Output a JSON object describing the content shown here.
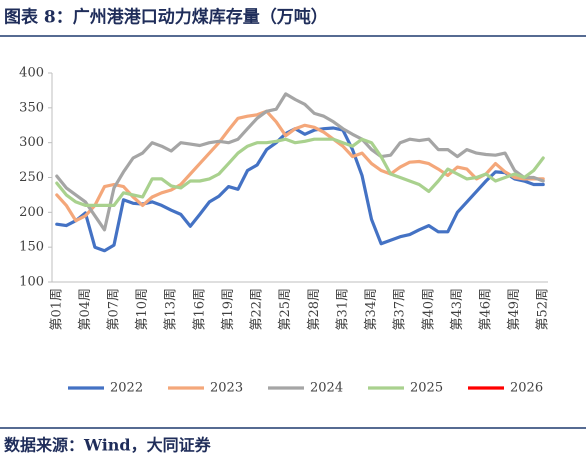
{
  "chart_data": {
    "type": "line",
    "title": "图表 8：广州港港口动力煤库存量（万吨）",
    "source": "数据来源：Wind，大同证券",
    "categories": [
      "第01周",
      null,
      null,
      "第04周",
      null,
      null,
      "第07周",
      null,
      null,
      "第10周",
      null,
      null,
      "第13周",
      null,
      null,
      "第16周",
      null,
      null,
      "第19周",
      null,
      null,
      "第22周",
      null,
      null,
      "第25周",
      null,
      null,
      "第28周",
      null,
      null,
      "第31周",
      null,
      null,
      "第34周",
      null,
      null,
      "第37周",
      null,
      null,
      "第40周",
      null,
      null,
      "第43周",
      null,
      null,
      "第46周",
      null,
      null,
      "第49周",
      null,
      null,
      "第52周"
    ],
    "series": [
      {
        "name": "2022",
        "color": "#4472c4",
        "values": [
          183,
          181,
          188,
          199,
          150,
          145,
          153,
          218,
          213,
          212,
          215,
          210,
          203,
          197,
          180,
          197,
          215,
          223,
          237,
          233,
          260,
          268,
          290,
          300,
          313,
          320,
          312,
          318,
          320,
          321,
          318,
          290,
          253,
          190,
          155,
          160,
          165,
          168,
          175,
          181,
          172,
          172,
          200,
          215,
          230,
          245,
          258,
          257,
          248,
          245,
          240,
          240
        ]
      },
      {
        "name": "2023",
        "color": "#f4a77a",
        "values": [
          225,
          210,
          188,
          195,
          210,
          237,
          240,
          237,
          222,
          210,
          222,
          228,
          232,
          240,
          255,
          270,
          285,
          300,
          318,
          335,
          338,
          340,
          345,
          330,
          310,
          320,
          325,
          322,
          315,
          305,
          295,
          280,
          285,
          270,
          260,
          255,
          265,
          272,
          273,
          270,
          262,
          253,
          265,
          262,
          248,
          255,
          270,
          258,
          250,
          248,
          248,
          248
        ]
      },
      {
        "name": "2024",
        "color": "#a5a5a5",
        "values": [
          252,
          235,
          225,
          215,
          195,
          175,
          235,
          258,
          278,
          285,
          300,
          295,
          288,
          300,
          298,
          296,
          300,
          302,
          300,
          305,
          320,
          335,
          345,
          348,
          370,
          362,
          355,
          342,
          338,
          330,
          320,
          312,
          305,
          290,
          280,
          282,
          300,
          305,
          303,
          305,
          290,
          290,
          280,
          290,
          285,
          283,
          282,
          285,
          260,
          250,
          250,
          245
        ]
      },
      {
        "name": "2025",
        "color": "#a9d18e",
        "values": [
          242,
          225,
          215,
          210,
          210,
          210,
          210,
          228,
          225,
          222,
          248,
          248,
          238,
          235,
          245,
          245,
          248,
          255,
          270,
          285,
          295,
          300,
          300,
          302,
          305,
          300,
          302,
          305,
          305,
          305,
          300,
          295,
          305,
          300,
          280,
          255,
          250,
          245,
          240,
          230,
          245,
          262,
          255,
          248,
          250,
          255,
          245,
          250,
          255,
          250,
          260,
          278
        ]
      },
      {
        "name": "2026",
        "color": "#ff0000",
        "values": [
          null,
          null,
          null,
          null,
          null,
          null,
          null,
          null,
          null,
          null,
          null,
          null,
          null,
          null,
          null,
          null,
          null,
          null,
          null,
          null,
          null,
          null,
          null,
          null,
          null,
          null,
          null,
          null,
          null,
          null,
          null,
          null,
          null,
          null,
          null,
          null,
          null,
          null,
          null,
          null,
          null,
          null,
          null,
          null,
          null,
          null,
          null,
          null,
          null,
          null,
          null,
          null
        ]
      }
    ],
    "ylim": [
      100,
      400
    ],
    "yticks": [
      100,
      150,
      200,
      250,
      300,
      350,
      400
    ],
    "grid": false
  }
}
